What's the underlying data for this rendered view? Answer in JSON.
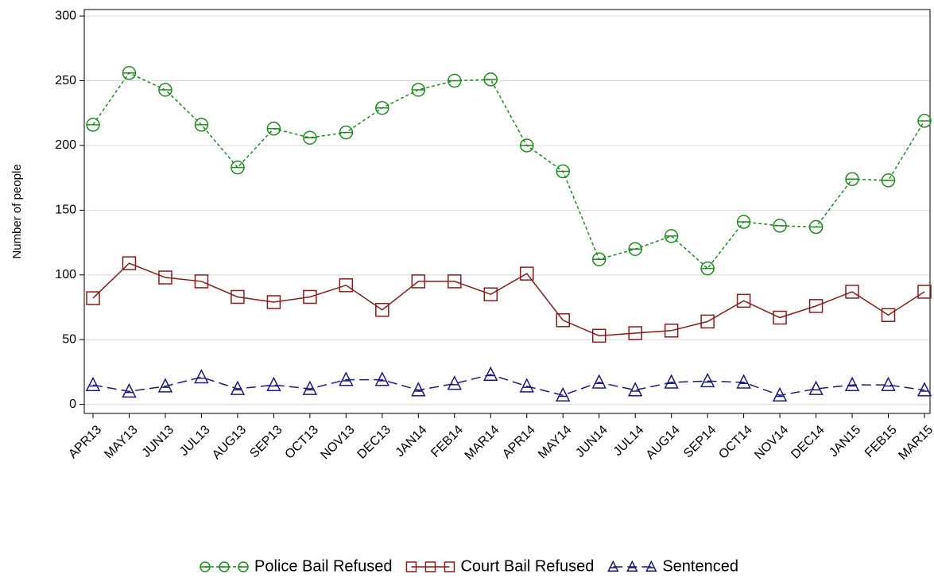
{
  "chart_data": {
    "type": "line",
    "y_label": "Number of people",
    "categories": [
      "APR13",
      "MAY13",
      "JUN13",
      "JUL13",
      "AUG13",
      "SEP13",
      "OCT13",
      "NOV13",
      "DEC13",
      "JAN14",
      "FEB14",
      "MAR14",
      "APR14",
      "MAY14",
      "JUN14",
      "JUL14",
      "AUG14",
      "SEP14",
      "OCT14",
      "NOV14",
      "DEC14",
      "JAN15",
      "FEB15",
      "MAR15"
    ],
    "series": [
      {
        "name": "Police Bail Refused",
        "color": "#1a8c1a",
        "marker": "circle",
        "line_style": "dotted",
        "values": [
          216,
          256,
          243,
          216,
          183,
          213,
          206,
          210,
          229,
          243,
          250,
          251,
          200,
          180,
          112,
          120,
          130,
          105,
          141,
          138,
          137,
          174,
          173,
          219
        ]
      },
      {
        "name": "Court Bail Refused",
        "color": "#8b1a1a",
        "marker": "square",
        "line_style": "solid",
        "values": [
          82,
          109,
          98,
          95,
          83,
          79,
          83,
          92,
          73,
          95,
          95,
          85,
          101,
          65,
          53,
          55,
          57,
          64,
          80,
          67,
          76,
          87,
          69,
          87
        ]
      },
      {
        "name": "Sentenced",
        "color": "#1a1a80",
        "marker": "triangle",
        "line_style": "dashed",
        "values": [
          15,
          10,
          14,
          21,
          12,
          15,
          12,
          19,
          19,
          11,
          16,
          23,
          14,
          7,
          17,
          11,
          17,
          18,
          17,
          7,
          12,
          15,
          15,
          11
        ]
      }
    ],
    "ylim": [
      -7,
      305
    ],
    "yticks": [
      0,
      50,
      100,
      150,
      200,
      250,
      300
    ],
    "grid": true,
    "legend": "bottom"
  }
}
